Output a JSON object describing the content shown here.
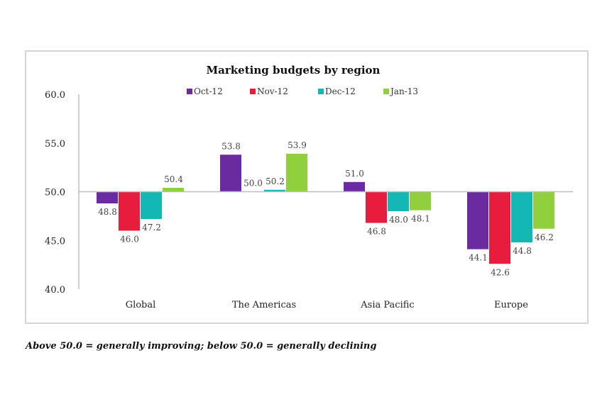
{
  "chart_data": {
    "type": "bar",
    "title": "Marketing budgets by region",
    "categories": [
      "Global",
      "The Americas",
      "Asia Pacific",
      "Europe"
    ],
    "series": [
      {
        "name": "Oct-12",
        "color": "#6a2aa0",
        "values": [
          48.8,
          53.8,
          51.0,
          44.1
        ]
      },
      {
        "name": "Nov-12",
        "color": "#e81c3c",
        "values": [
          46.0,
          50.0,
          46.8,
          42.6
        ]
      },
      {
        "name": "Dec-12",
        "color": "#13b8b4",
        "values": [
          47.2,
          50.2,
          48.0,
          44.8
        ]
      },
      {
        "name": "Jan-13",
        "color": "#8fd03c",
        "values": [
          50.4,
          53.9,
          48.1,
          46.2
        ]
      }
    ],
    "baseline": 50.0,
    "ylim": [
      40.0,
      60.0
    ],
    "yticks": [
      "40.0",
      "45.0",
      "50.0",
      "55.0",
      "60.0"
    ],
    "legend_position": "top-center",
    "grid": false,
    "xlabel": "",
    "ylabel": ""
  },
  "footnote": "Above 50.0 = generally improving; below 50.0 = generally declining"
}
